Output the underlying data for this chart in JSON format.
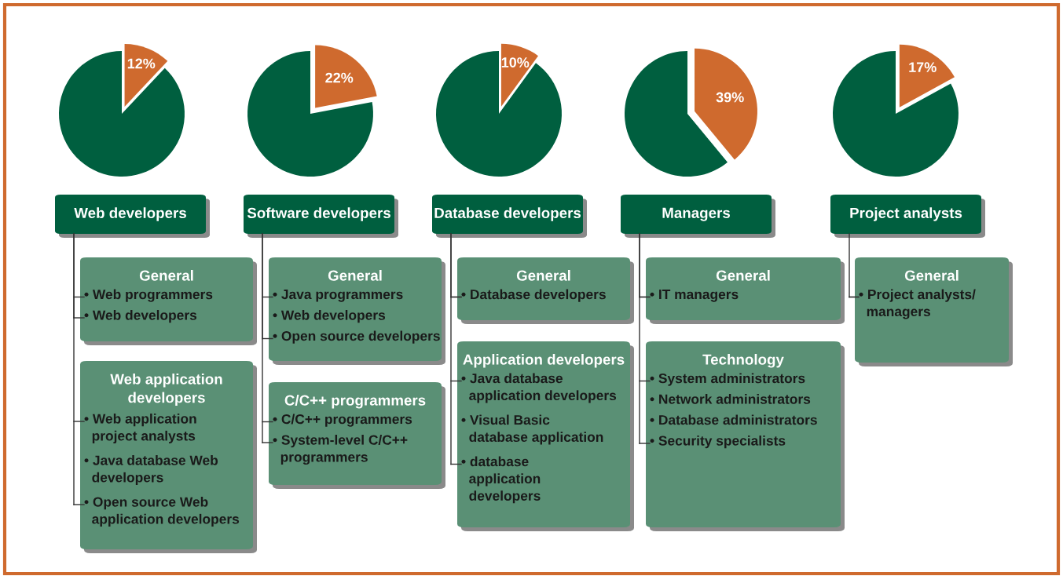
{
  "chart_data": [
    {
      "type": "pie",
      "title": "Web developers",
      "categories": [
        null,
        null
      ],
      "values": [
        12,
        88
      ],
      "colors": [
        "#cf6a2e",
        "#005f3f"
      ],
      "value_labels": [
        "12%",
        null
      ]
    },
    {
      "type": "pie",
      "title": "Software developers",
      "categories": [
        null,
        null
      ],
      "values": [
        22,
        78
      ],
      "colors": [
        "#cf6a2e",
        "#005f3f"
      ],
      "value_labels": [
        "22%",
        null
      ]
    },
    {
      "type": "pie",
      "title": "Database developers",
      "categories": [
        null,
        null
      ],
      "values": [
        10,
        90
      ],
      "colors": [
        "#cf6a2e",
        "#005f3f"
      ],
      "value_labels": [
        "10%",
        null
      ]
    },
    {
      "type": "pie",
      "title": "Managers",
      "categories": [
        null,
        null
      ],
      "values": [
        39,
        61
      ],
      "colors": [
        "#cf6a2e",
        "#005f3f"
      ],
      "value_labels": [
        "39%",
        null
      ]
    },
    {
      "type": "pie",
      "title": "Project analysts",
      "categories": [
        null,
        null
      ],
      "values": [
        17,
        83
      ],
      "colors": [
        "#cf6a2e",
        "#005f3f"
      ],
      "value_labels": [
        "17%",
        null
      ]
    },
    {
      "type": "other",
      "title": "General",
      "annotations": [
        "• Web programmers",
        "• Web developers"
      ]
    },
    {
      "type": "other",
      "title": "Web application\ndevelopers",
      "annotations": [
        "• Web application\n  project analysts",
        "• Java database Web\n  developers",
        "• Open source Web\n  application developers"
      ]
    },
    {
      "type": "other",
      "title": "General",
      "annotations": [
        "• Java programmers",
        "• Web developers",
        "• Open source developers"
      ]
    },
    {
      "type": "other",
      "title": "C/C++ programmers",
      "annotations": [
        "• C/C++ programmers",
        "• System-level C/C++\n  programmers"
      ]
    },
    {
      "type": "other",
      "title": "General",
      "annotations": [
        "• Database developers"
      ]
    },
    {
      "type": "other",
      "title": "Application developers",
      "annotations": [
        "• Java database\n  application developers",
        "• Visual Basic\n  database application",
        "• database\n  application\n  developers"
      ]
    },
    {
      "type": "other",
      "title": "General",
      "annotations": [
        "• IT managers"
      ]
    },
    {
      "type": "other",
      "title": "Technology",
      "annotations": [
        "• System administrators",
        "• Network administrators",
        "• Database administrators",
        "• Security specialists"
      ]
    },
    {
      "type": "other",
      "title": "General",
      "annotations": [
        "• Project analysts/\n  managers"
      ]
    }
  ]
}
